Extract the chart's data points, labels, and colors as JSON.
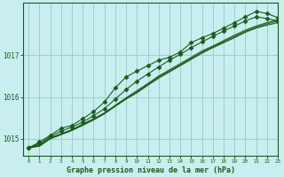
{
  "title": "Graphe pression niveau de la mer (hPa)",
  "background_color": "#c8eef0",
  "grid_color": "#a0cccc",
  "line_color": "#1a5c1a",
  "xlim": [
    -0.5,
    23
  ],
  "ylim": [
    1014.6,
    1018.25
  ],
  "yticks": [
    1015,
    1016,
    1017
  ],
  "xticks": [
    0,
    1,
    2,
    3,
    4,
    5,
    6,
    7,
    8,
    9,
    10,
    11,
    12,
    13,
    14,
    15,
    16,
    17,
    18,
    19,
    20,
    21,
    22,
    23
  ],
  "series_smooth": [
    [
      1014.78,
      1014.82,
      1015.0,
      1015.1,
      1015.2,
      1015.32,
      1015.45,
      1015.6,
      1015.78,
      1015.95,
      1016.1,
      1016.28,
      1016.45,
      1016.6,
      1016.75,
      1016.9,
      1017.05,
      1017.18,
      1017.3,
      1017.42,
      1017.55,
      1017.65,
      1017.72,
      1017.78
    ],
    [
      1014.8,
      1014.85,
      1015.02,
      1015.12,
      1015.22,
      1015.35,
      1015.48,
      1015.62,
      1015.8,
      1015.98,
      1016.15,
      1016.32,
      1016.5,
      1016.65,
      1016.8,
      1016.95,
      1017.1,
      1017.22,
      1017.35,
      1017.48,
      1017.6,
      1017.7,
      1017.78,
      1017.85
    ],
    [
      1014.78,
      1014.83,
      1015.0,
      1015.1,
      1015.2,
      1015.33,
      1015.46,
      1015.6,
      1015.78,
      1015.96,
      1016.12,
      1016.3,
      1016.48,
      1016.62,
      1016.77,
      1016.92,
      1017.07,
      1017.2,
      1017.32,
      1017.45,
      1017.57,
      1017.67,
      1017.75,
      1017.82
    ]
  ],
  "series_marker": [
    1014.78,
    1014.92,
    1015.08,
    1015.25,
    1015.32,
    1015.48,
    1015.65,
    1015.88,
    1016.22,
    1016.48,
    1016.62,
    1016.75,
    1016.88,
    1016.95,
    1017.08,
    1017.3,
    1017.42,
    1017.52,
    1017.65,
    1017.78,
    1017.92,
    1018.05,
    1018.0,
    1017.9
  ],
  "series_marker2": [
    1014.78,
    1014.88,
    1015.05,
    1015.18,
    1015.28,
    1015.4,
    1015.55,
    1015.72,
    1015.95,
    1016.18,
    1016.38,
    1016.55,
    1016.72,
    1016.88,
    1017.02,
    1017.18,
    1017.32,
    1017.45,
    1017.58,
    1017.7,
    1017.82,
    1017.92,
    1017.88,
    1017.82
  ],
  "marker": "D",
  "marker_size": 2.5
}
